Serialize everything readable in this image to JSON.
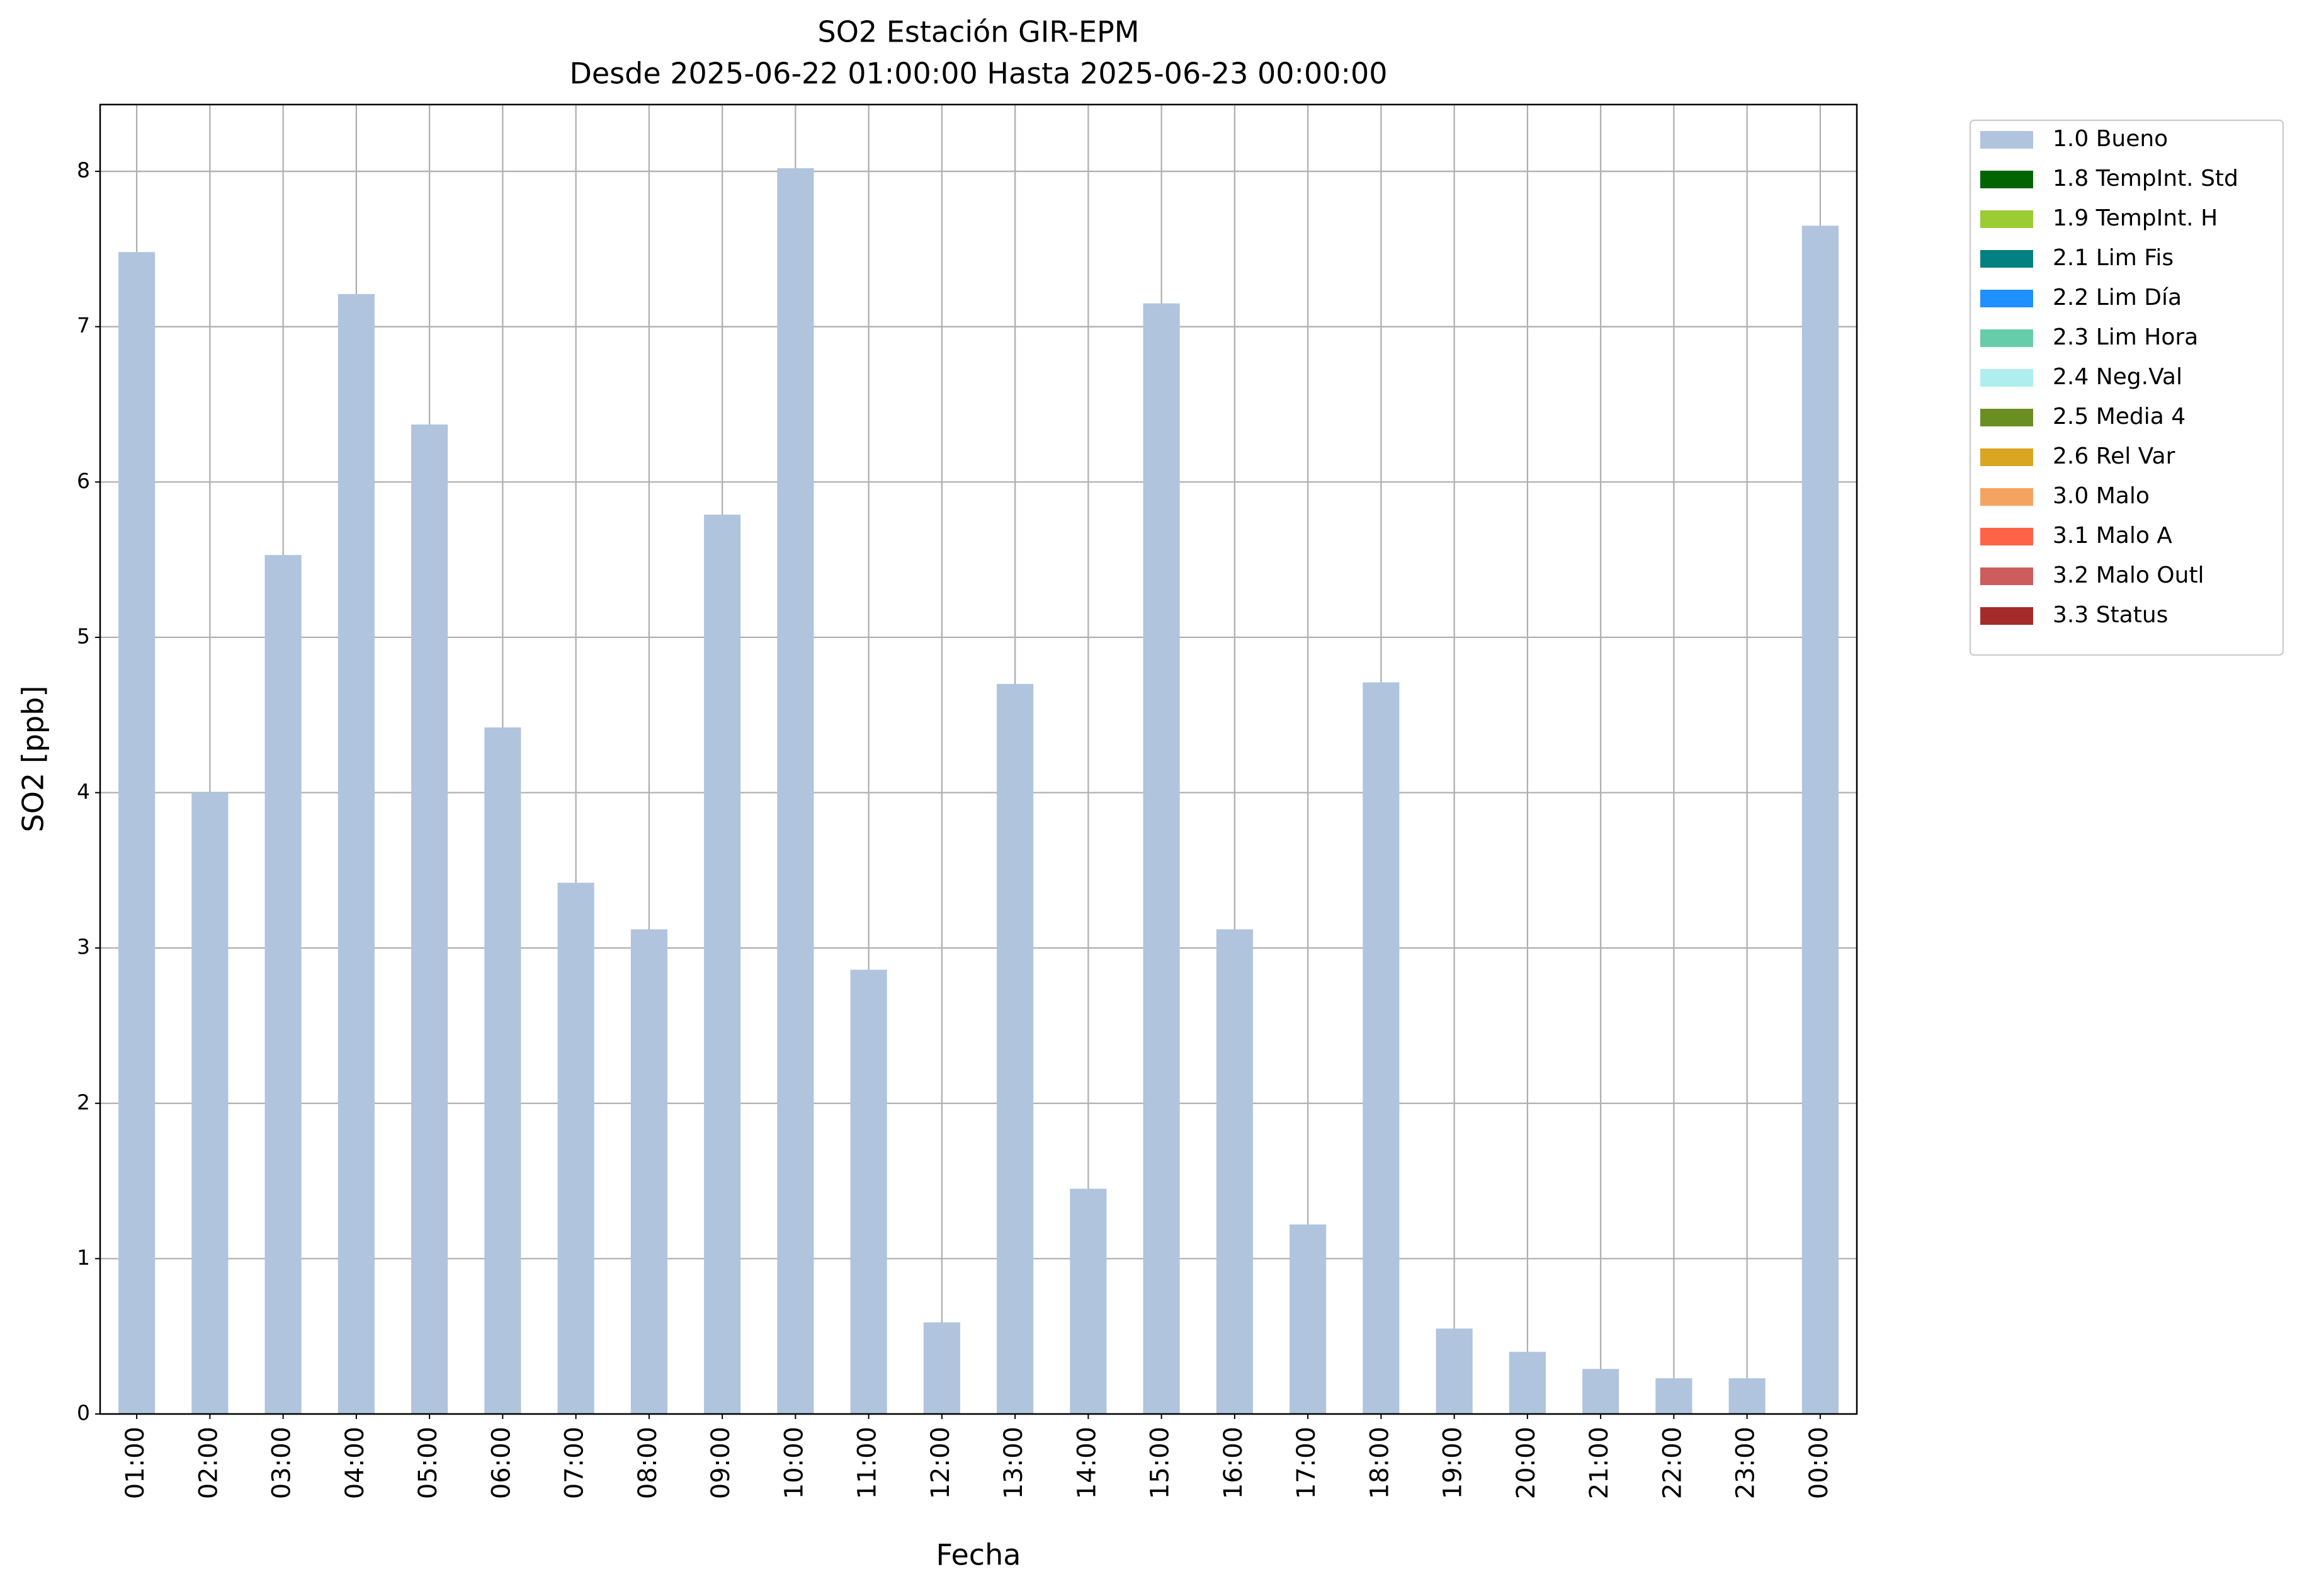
{
  "chart_data": {
    "type": "bar",
    "stacked": true,
    "title": "SO2 Estación GIR-EPM",
    "subtitle": "Desde 2025-06-22 01:00:00 Hasta 2025-06-23 00:00:00",
    "x_label": "Fecha",
    "y_label": "SO2 [ppb]",
    "categories": [
      "01:00",
      "02:00",
      "03:00",
      "04:00",
      "05:00",
      "06:00",
      "07:00",
      "08:00",
      "09:00",
      "10:00",
      "11:00",
      "12:00",
      "13:00",
      "14:00",
      "15:00",
      "16:00",
      "17:00",
      "18:00",
      "19:00",
      "20:00",
      "21:00",
      "22:00",
      "23:00",
      "00:00"
    ],
    "series": [
      {
        "name": "1.0 Bueno",
        "color": "#b0c4de",
        "values": [
          7.48,
          4.0,
          5.53,
          7.21,
          6.37,
          4.42,
          3.42,
          3.12,
          5.79,
          8.02,
          2.86,
          0.59,
          4.7,
          1.45,
          7.15,
          3.12,
          1.22,
          4.71,
          0.55,
          0.4,
          0.29,
          0.23,
          0.23,
          7.65
        ]
      },
      {
        "name": "1.8 TempInt. Std",
        "color": "#006400",
        "values": [
          0,
          0,
          0,
          0,
          0,
          0,
          0,
          0,
          0,
          0,
          0,
          0,
          0,
          0,
          0,
          0,
          0,
          0,
          0,
          0,
          0,
          0,
          0,
          0
        ]
      },
      {
        "name": "1.9 TempInt. H",
        "color": "#9acd32",
        "values": [
          0,
          0,
          0,
          0,
          0,
          0,
          0,
          0,
          0,
          0,
          0,
          0,
          0,
          0,
          0,
          0,
          0,
          0,
          0,
          0,
          0,
          0,
          0,
          0
        ]
      },
      {
        "name": "2.1 Lim Fis",
        "color": "#008080",
        "values": [
          0,
          0,
          0,
          0,
          0,
          0,
          0,
          0,
          0,
          0,
          0,
          0,
          0,
          0,
          0,
          0,
          0,
          0,
          0,
          0,
          0,
          0,
          0,
          0
        ]
      },
      {
        "name": "2.2 Lim Día",
        "color": "#1e90ff",
        "values": [
          0,
          0,
          0,
          0,
          0,
          0,
          0,
          0,
          0,
          0,
          0,
          0,
          0,
          0,
          0,
          0,
          0,
          0,
          0,
          0,
          0,
          0,
          0,
          0
        ]
      },
      {
        "name": "2.3 Lim Hora",
        "color": "#66cdaa",
        "values": [
          0,
          0,
          0,
          0,
          0,
          0,
          0,
          0,
          0,
          0,
          0,
          0,
          0,
          0,
          0,
          0,
          0,
          0,
          0,
          0,
          0,
          0,
          0,
          0
        ]
      },
      {
        "name": "2.4 Neg.Val",
        "color": "#afeeee",
        "values": [
          0,
          0,
          0,
          0,
          0,
          0,
          0,
          0,
          0,
          0,
          0,
          0,
          0,
          0,
          0,
          0,
          0,
          0,
          0,
          0,
          0,
          0,
          0,
          0
        ]
      },
      {
        "name": "2.5 Media 4",
        "color": "#6b8e23",
        "values": [
          0,
          0,
          0,
          0,
          0,
          0,
          0,
          0,
          0,
          0,
          0,
          0,
          0,
          0,
          0,
          0,
          0,
          0,
          0,
          0,
          0,
          0,
          0,
          0
        ]
      },
      {
        "name": "2.6 Rel Var",
        "color": "#daa520",
        "values": [
          0,
          0,
          0,
          0,
          0,
          0,
          0,
          0,
          0,
          0,
          0,
          0,
          0,
          0,
          0,
          0,
          0,
          0,
          0,
          0,
          0,
          0,
          0,
          0
        ]
      },
      {
        "name": "3.0 Malo",
        "color": "#f4a460",
        "values": [
          0,
          0,
          0,
          0,
          0,
          0,
          0,
          0,
          0,
          0,
          0,
          0,
          0,
          0,
          0,
          0,
          0,
          0,
          0,
          0,
          0,
          0,
          0,
          0
        ]
      },
      {
        "name": "3.1 Malo A",
        "color": "#ff6347",
        "values": [
          0,
          0,
          0,
          0,
          0,
          0,
          0,
          0,
          0,
          0,
          0,
          0,
          0,
          0,
          0,
          0,
          0,
          0,
          0,
          0,
          0,
          0,
          0,
          0
        ]
      },
      {
        "name": "3.2 Malo Outl",
        "color": "#cd5c5c",
        "values": [
          0,
          0,
          0,
          0,
          0,
          0,
          0,
          0,
          0,
          0,
          0,
          0,
          0,
          0,
          0,
          0,
          0,
          0,
          0,
          0,
          0,
          0,
          0,
          0
        ]
      },
      {
        "name": "3.3 Status",
        "color": "#a52a2a",
        "values": [
          0,
          0,
          0,
          0,
          0,
          0,
          0,
          0,
          0,
          0,
          0,
          0,
          0,
          0,
          0,
          0,
          0,
          0,
          0,
          0,
          0,
          0,
          0,
          0
        ]
      }
    ],
    "ylim": [
      0,
      8.43
    ],
    "yticks": [
      0,
      1,
      2,
      3,
      4,
      5,
      6,
      7,
      8
    ],
    "grid": true,
    "legend": "outside-upper-right"
  }
}
